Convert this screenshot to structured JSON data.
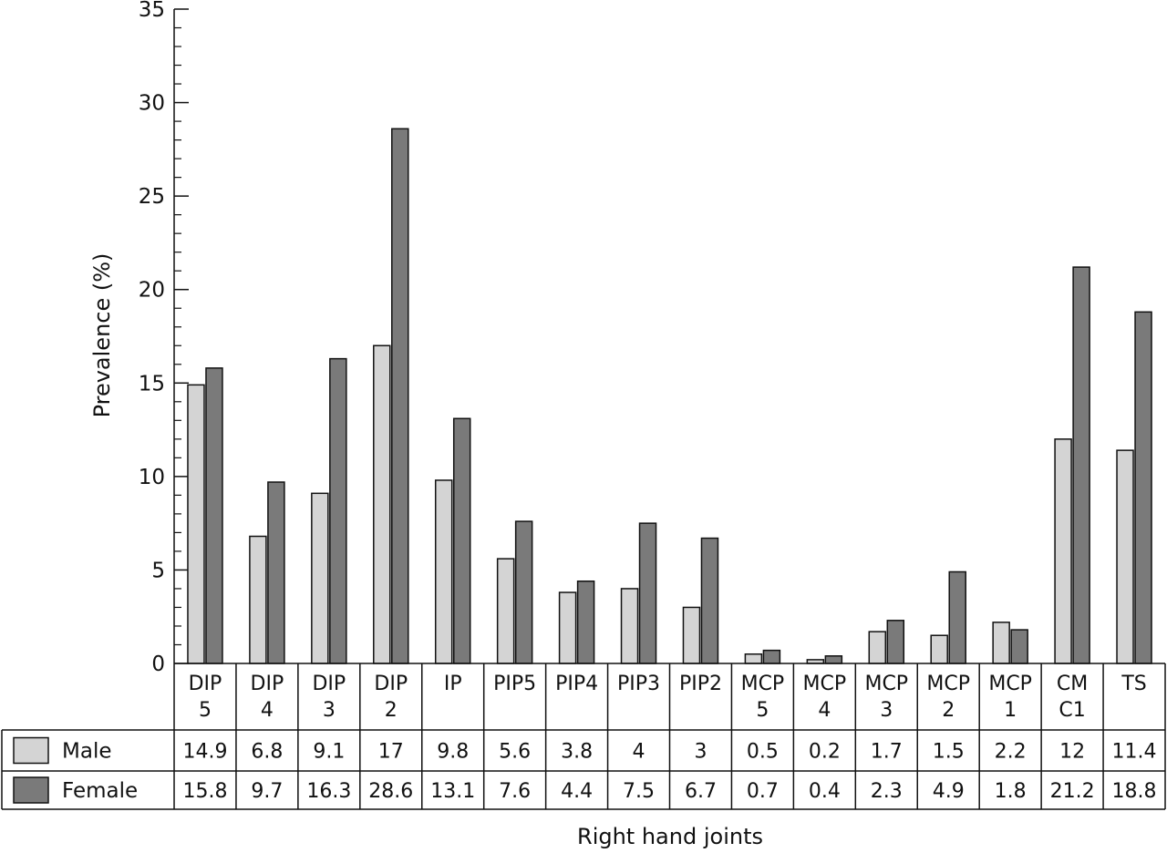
{
  "chart_data": {
    "type": "bar",
    "ylabel": "Prevalence (%)",
    "xlabel": "Right hand joints",
    "ylim": [
      0,
      35
    ],
    "yticks": [
      0,
      5,
      10,
      15,
      20,
      25,
      30,
      35
    ],
    "categories": [
      [
        "DIP",
        "5"
      ],
      [
        "DIP",
        "4"
      ],
      [
        "DIP",
        "3"
      ],
      [
        "DIP",
        "2"
      ],
      [
        "IP"
      ],
      [
        "PIP5"
      ],
      [
        "PIP4"
      ],
      [
        "PIP3"
      ],
      [
        "PIP2"
      ],
      [
        "MCP",
        "5"
      ],
      [
        "MCP",
        "4"
      ],
      [
        "MCP",
        "3"
      ],
      [
        "MCP",
        "2"
      ],
      [
        "MCP",
        "1"
      ],
      [
        "CM",
        "C1"
      ],
      [
        "TS"
      ]
    ],
    "series": [
      {
        "name": "Male",
        "color": "#d4d4d4",
        "values": [
          14.9,
          6.8,
          9.1,
          17,
          9.8,
          5.6,
          3.8,
          4,
          3,
          0.5,
          0.2,
          1.7,
          1.5,
          2.2,
          12,
          11.4
        ]
      },
      {
        "name": "Female",
        "color": "#7a7a7a",
        "values": [
          15.8,
          9.7,
          16.3,
          28.6,
          13.1,
          7.6,
          4.4,
          7.5,
          6.7,
          0.7,
          0.4,
          2.3,
          4.9,
          1.8,
          21.2,
          18.8
        ]
      }
    ],
    "grid": false,
    "legend": "data-table"
  }
}
